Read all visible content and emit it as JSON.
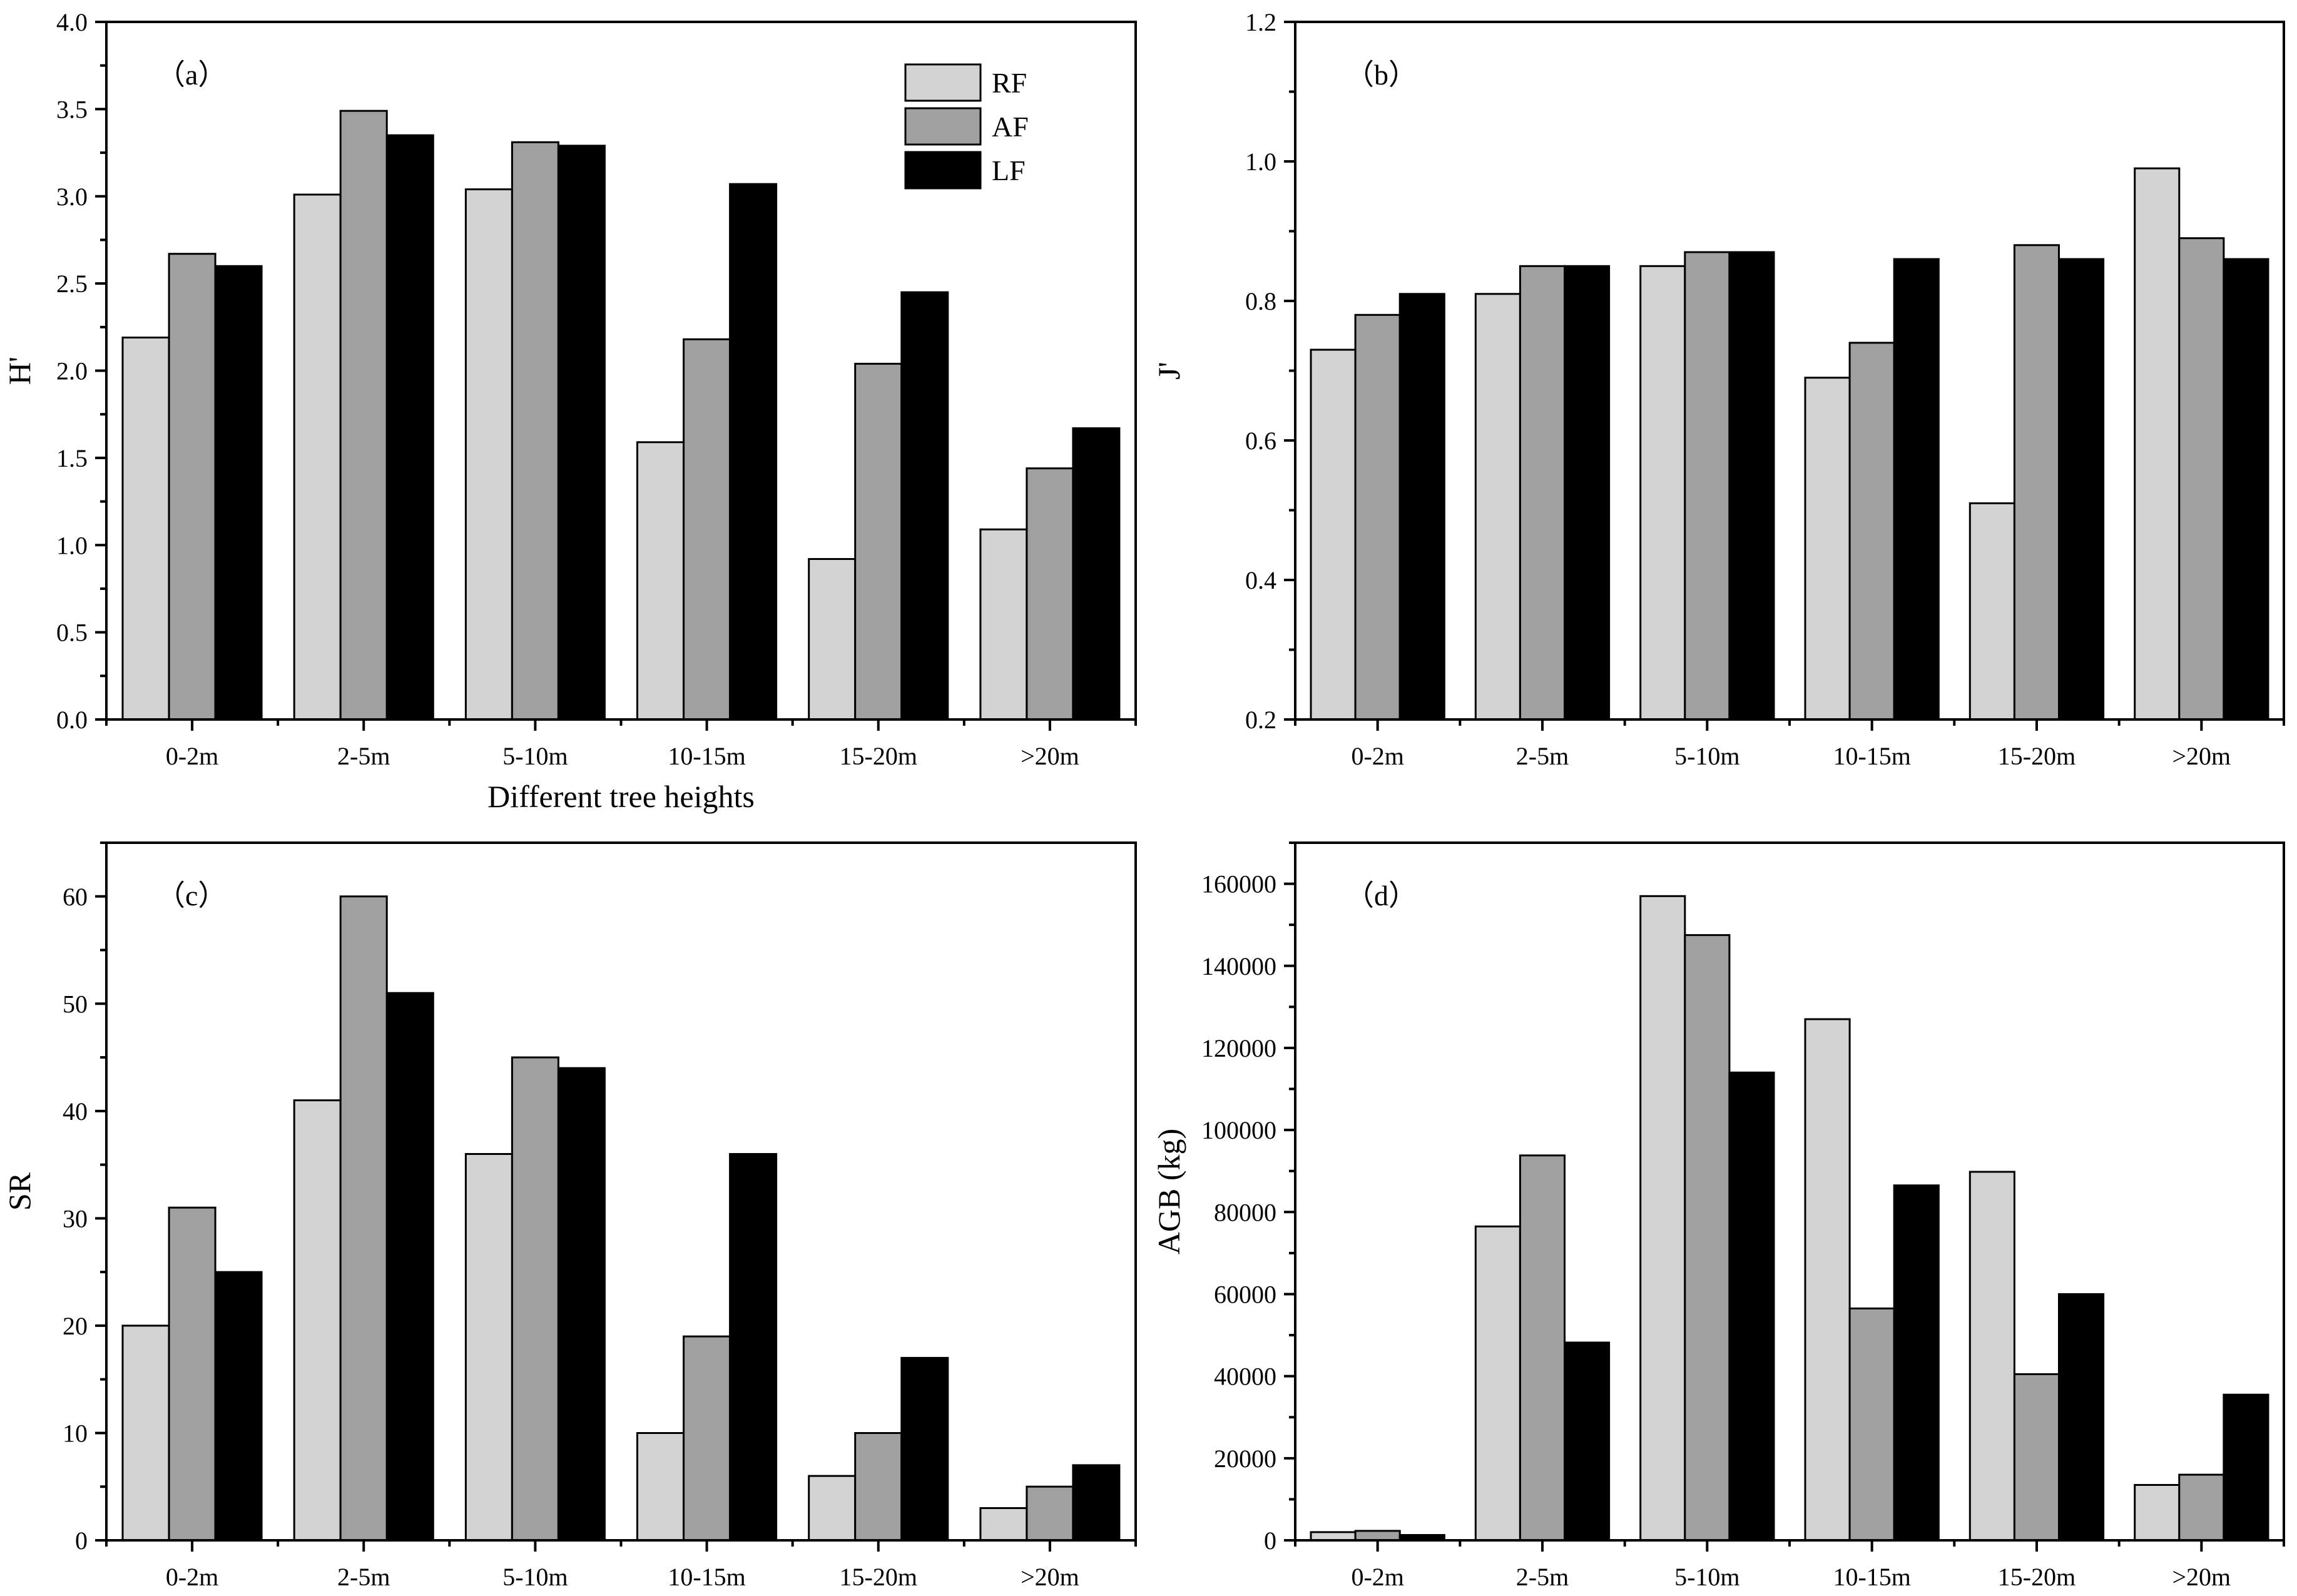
{
  "legend": [
    {
      "name": "RF",
      "color": "#d3d3d3"
    },
    {
      "name": "AF",
      "color": "#a0a0a0"
    },
    {
      "name": "LF",
      "color": "#000000"
    }
  ],
  "chart_data": [
    {
      "type": "bar",
      "panel_label": "（a）",
      "title": "",
      "xlabel": "Different tree heights",
      "ylabel": "H'",
      "categories": [
        "0-2m",
        "2-5m",
        "5-10m",
        "10-15m",
        "15-20m",
        ">20m"
      ],
      "ylim": [
        0,
        4.0
      ],
      "yticks": [
        0.0,
        0.5,
        1.0,
        1.5,
        2.0,
        2.5,
        3.0,
        3.5,
        4.0
      ],
      "ytick_labels": [
        "0.0",
        "0.5",
        "1.0",
        "1.5",
        "2.0",
        "2.5",
        "3.0",
        "3.5",
        "4.0"
      ],
      "legend_position": "top-right",
      "series": [
        {
          "name": "RF",
          "values": [
            2.19,
            3.01,
            3.04,
            1.59,
            0.92,
            1.09
          ]
        },
        {
          "name": "AF",
          "values": [
            2.67,
            3.49,
            3.31,
            2.18,
            2.04,
            1.44
          ]
        },
        {
          "name": "LF",
          "values": [
            2.6,
            3.35,
            3.29,
            3.07,
            2.45,
            1.67
          ]
        }
      ]
    },
    {
      "type": "bar",
      "panel_label": "（b）",
      "title": "",
      "xlabel": "",
      "ylabel": "J'",
      "categories": [
        "0-2m",
        "2-5m",
        "5-10m",
        "10-15m",
        "15-20m",
        ">20m"
      ],
      "ylim": [
        0.2,
        1.2
      ],
      "yticks": [
        0.2,
        0.4,
        0.6,
        0.8,
        1.0,
        1.2
      ],
      "ytick_labels": [
        "0.2",
        "0.4",
        "0.6",
        "0.8",
        "1.0",
        "1.2"
      ],
      "series": [
        {
          "name": "RF",
          "values": [
            0.73,
            0.81,
            0.85,
            0.69,
            0.51,
            0.99
          ]
        },
        {
          "name": "AF",
          "values": [
            0.78,
            0.85,
            0.87,
            0.74,
            0.88,
            0.89
          ]
        },
        {
          "name": "LF",
          "values": [
            0.81,
            0.85,
            0.87,
            0.86,
            0.86,
            0.86
          ]
        }
      ]
    },
    {
      "type": "bar",
      "panel_label": "（c）",
      "title": "",
      "xlabel": "",
      "ylabel": "SR",
      "categories": [
        "0-2m",
        "2-5m",
        "5-10m",
        "10-15m",
        "15-20m",
        ">20m"
      ],
      "ylim": [
        0,
        65
      ],
      "yticks": [
        0,
        10,
        20,
        30,
        40,
        50,
        60
      ],
      "ytick_labels": [
        "0",
        "10",
        "20",
        "30",
        "40",
        "50",
        "60"
      ],
      "series": [
        {
          "name": "RF",
          "values": [
            20,
            41,
            36,
            10,
            6,
            3
          ]
        },
        {
          "name": "AF",
          "values": [
            31,
            60,
            45,
            19,
            10,
            5
          ]
        },
        {
          "name": "LF",
          "values": [
            25,
            51,
            44,
            36,
            17,
            7
          ]
        }
      ]
    },
    {
      "type": "bar",
      "panel_label": "（d）",
      "title": "",
      "xlabel": "",
      "ylabel": "AGB (kg)",
      "categories": [
        "0-2m",
        "2-5m",
        "5-10m",
        "10-15m",
        "15-20m",
        ">20m"
      ],
      "ylim": [
        0,
        170000
      ],
      "yticks": [
        0,
        20000,
        40000,
        60000,
        80000,
        100000,
        120000,
        140000,
        160000
      ],
      "ytick_labels": [
        "0",
        "20000",
        "40000",
        "60000",
        "80000",
        "100000",
        "120000",
        "140000",
        "160000"
      ],
      "series": [
        {
          "name": "RF",
          "values": [
            2000,
            76500,
            157000,
            127000,
            89800,
            13500
          ]
        },
        {
          "name": "AF",
          "values": [
            2300,
            93800,
            147500,
            56500,
            40500,
            16000
          ]
        },
        {
          "name": "LF",
          "values": [
            1300,
            48200,
            114000,
            86500,
            60000,
            35500
          ]
        }
      ]
    }
  ]
}
